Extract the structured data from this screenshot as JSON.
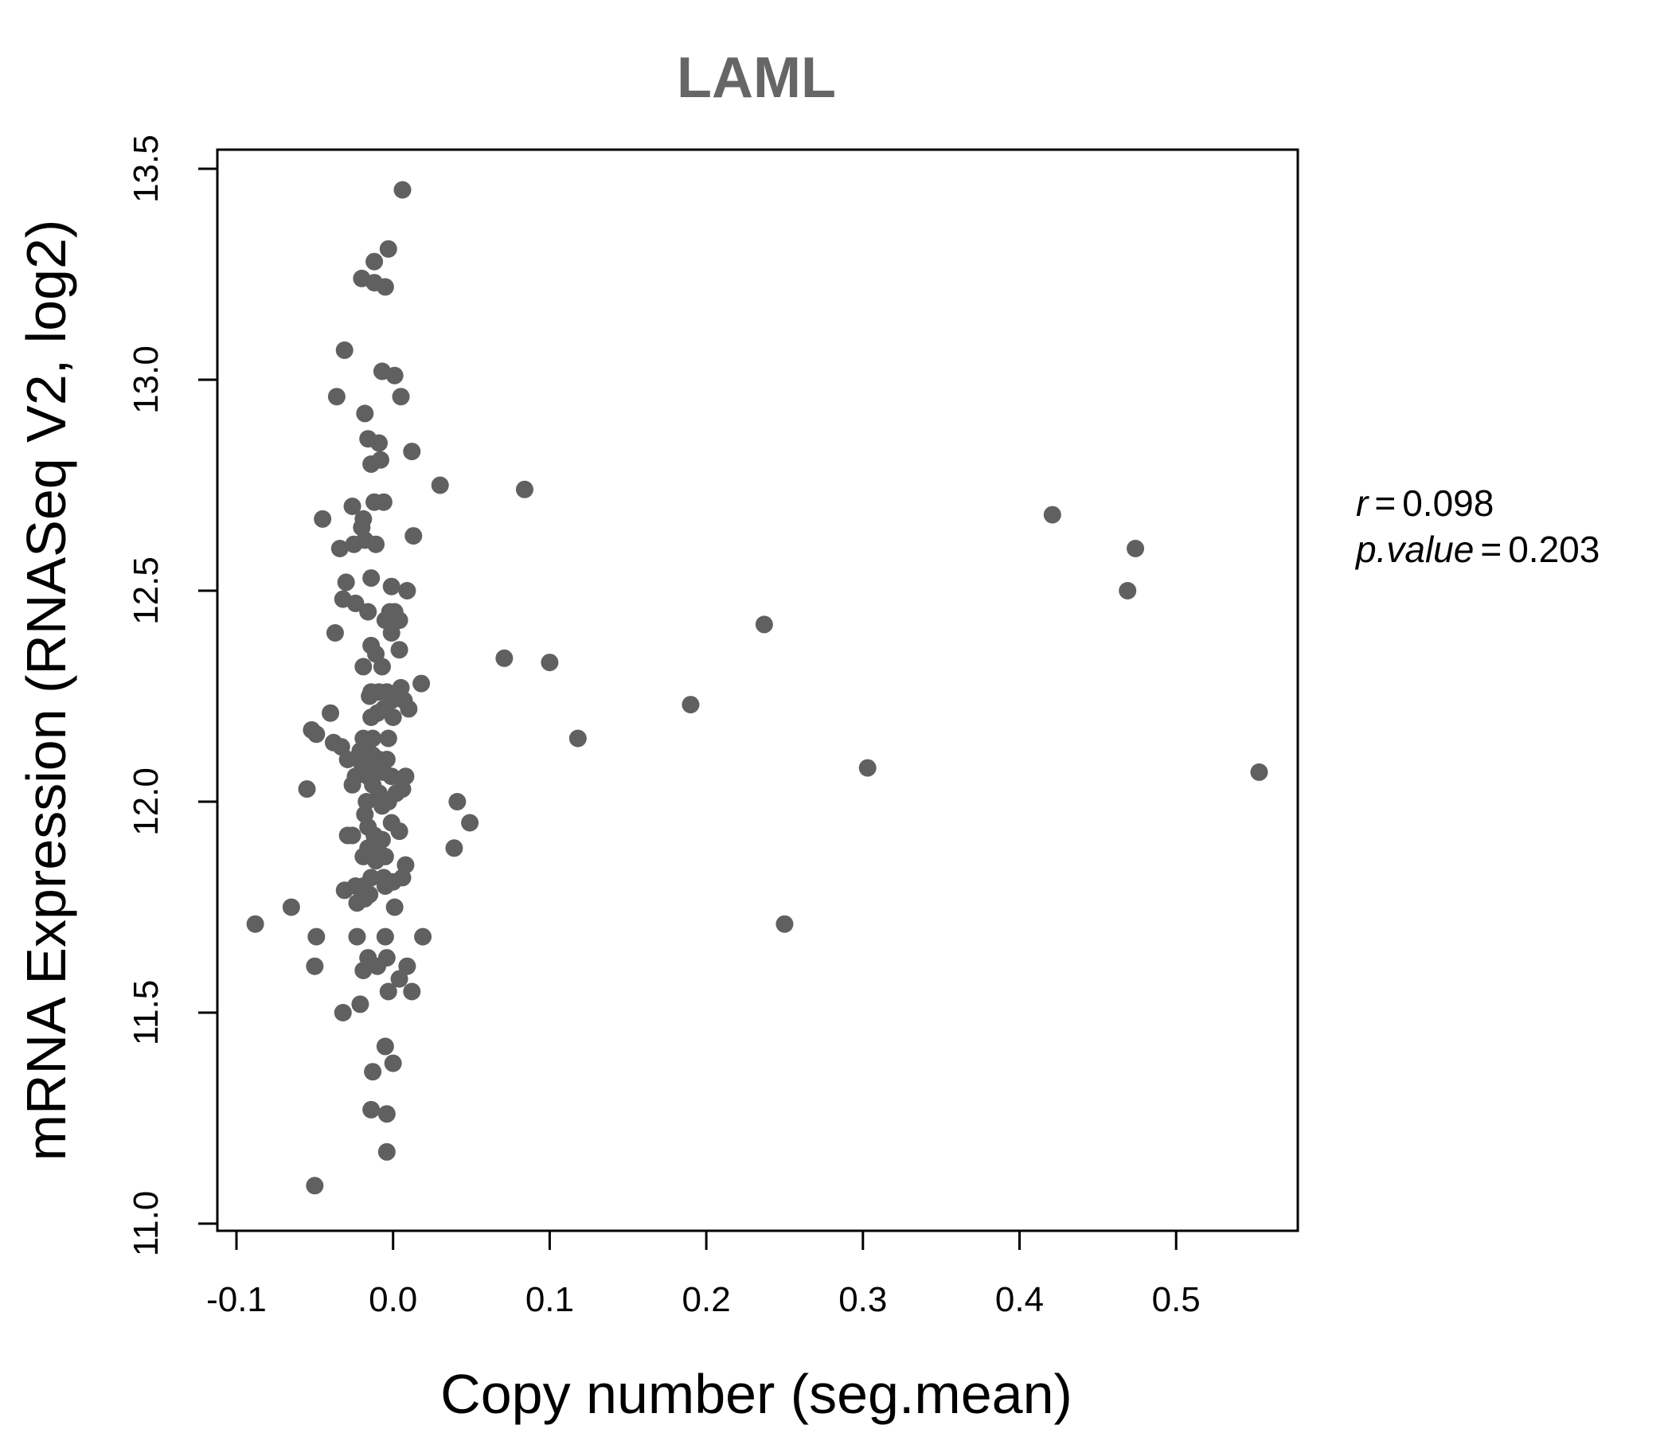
{
  "chart_data": {
    "type": "scatter",
    "title": "LAML",
    "xlabel": "Copy number (seg.mean)",
    "ylabel": "mRNA Expression (RNASeq V2, log2)",
    "xlim": [
      -0.11,
      0.58
    ],
    "ylim": [
      11.0,
      13.5
    ],
    "x_ticks": [
      -0.1,
      0.0,
      0.1,
      0.2,
      0.3,
      0.4,
      0.5
    ],
    "x_tick_labels": [
      "-0.1",
      "0.0",
      "0.1",
      "0.2",
      "0.3",
      "0.4",
      "0.5"
    ],
    "y_ticks": [
      11.0,
      11.5,
      12.0,
      12.5,
      13.0,
      13.5
    ],
    "y_tick_labels": [
      "11.0",
      "11.5",
      "12.0",
      "12.5",
      "13.0",
      "13.5"
    ],
    "grid": false,
    "point_color": "#606060",
    "stats": {
      "r_label": "r",
      "r_value": "0.098",
      "p_label": "p.value",
      "p_value": "0.203"
    },
    "points": [
      [
        0.006,
        13.45
      ],
      [
        -0.003,
        13.31
      ],
      [
        -0.012,
        13.28
      ],
      [
        -0.02,
        13.24
      ],
      [
        -0.012,
        13.23
      ],
      [
        -0.005,
        13.22
      ],
      [
        -0.031,
        13.07
      ],
      [
        -0.007,
        13.02
      ],
      [
        0.001,
        13.01
      ],
      [
        -0.036,
        12.96
      ],
      [
        0.005,
        12.96
      ],
      [
        -0.018,
        12.92
      ],
      [
        -0.016,
        12.86
      ],
      [
        -0.009,
        12.85
      ],
      [
        0.012,
        12.83
      ],
      [
        -0.008,
        12.81
      ],
      [
        -0.014,
        12.8
      ],
      [
        0.03,
        12.75
      ],
      [
        0.084,
        12.74
      ],
      [
        -0.026,
        12.7
      ],
      [
        -0.012,
        12.71
      ],
      [
        -0.006,
        12.71
      ],
      [
        0.421,
        12.68
      ],
      [
        -0.045,
        12.67
      ],
      [
        -0.019,
        12.67
      ],
      [
        -0.02,
        12.65
      ],
      [
        0.013,
        12.63
      ],
      [
        -0.018,
        12.62
      ],
      [
        -0.025,
        12.61
      ],
      [
        -0.011,
        12.61
      ],
      [
        -0.034,
        12.6
      ],
      [
        0.474,
        12.6
      ],
      [
        -0.03,
        12.52
      ],
      [
        -0.014,
        12.53
      ],
      [
        -0.001,
        12.51
      ],
      [
        0.009,
        12.5
      ],
      [
        0.469,
        12.5
      ],
      [
        -0.032,
        12.48
      ],
      [
        -0.024,
        12.47
      ],
      [
        -0.016,
        12.45
      ],
      [
        -0.002,
        12.45
      ],
      [
        0.001,
        12.45
      ],
      [
        -0.005,
        12.43
      ],
      [
        0.004,
        12.43
      ],
      [
        0.237,
        12.42
      ],
      [
        -0.037,
        12.4
      ],
      [
        -0.001,
        12.4
      ],
      [
        -0.014,
        12.37
      ],
      [
        -0.011,
        12.35
      ],
      [
        0.004,
        12.36
      ],
      [
        0.071,
        12.34
      ],
      [
        0.1,
        12.33
      ],
      [
        -0.019,
        12.32
      ],
      [
        -0.007,
        12.32
      ],
      [
        0.018,
        12.28
      ],
      [
        0.005,
        12.27
      ],
      [
        -0.014,
        12.26
      ],
      [
        -0.009,
        12.26
      ],
      [
        -0.004,
        12.26
      ],
      [
        0.002,
        12.25
      ],
      [
        -0.015,
        12.25
      ],
      [
        0.007,
        12.24
      ],
      [
        -0.001,
        12.24
      ],
      [
        0.19,
        12.23
      ],
      [
        0.01,
        12.22
      ],
      [
        -0.04,
        12.21
      ],
      [
        -0.006,
        12.22
      ],
      [
        -0.014,
        12.2
      ],
      [
        0.0,
        12.2
      ],
      [
        -0.01,
        12.21
      ],
      [
        -0.052,
        12.17
      ],
      [
        -0.049,
        12.16
      ],
      [
        0.118,
        12.15
      ],
      [
        -0.019,
        12.15
      ],
      [
        -0.013,
        12.15
      ],
      [
        -0.003,
        12.15
      ],
      [
        -0.038,
        12.14
      ],
      [
        -0.033,
        12.13
      ],
      [
        -0.021,
        12.12
      ],
      [
        -0.016,
        12.12
      ],
      [
        -0.013,
        12.11
      ],
      [
        -0.029,
        12.1
      ],
      [
        -0.009,
        12.1
      ],
      [
        -0.004,
        12.1
      ],
      [
        0.303,
        12.08
      ],
      [
        0.553,
        12.07
      ],
      [
        -0.02,
        12.09
      ],
      [
        -0.011,
        12.08
      ],
      [
        -0.006,
        12.07
      ],
      [
        -0.024,
        12.06
      ],
      [
        -0.016,
        12.06
      ],
      [
        -0.001,
        12.06
      ],
      [
        0.008,
        12.06
      ],
      [
        -0.026,
        12.04
      ],
      [
        -0.013,
        12.04
      ],
      [
        -0.055,
        12.03
      ],
      [
        0.006,
        12.03
      ],
      [
        0.002,
        12.02
      ],
      [
        -0.009,
        12.02
      ],
      [
        -0.017,
        12.0
      ],
      [
        0.041,
        12.0
      ],
      [
        -0.003,
        12.0
      ],
      [
        -0.007,
        11.99
      ],
      [
        -0.018,
        11.97
      ],
      [
        0.049,
        11.95
      ],
      [
        -0.001,
        11.95
      ],
      [
        -0.016,
        11.94
      ],
      [
        0.004,
        11.93
      ],
      [
        -0.029,
        11.92
      ],
      [
        -0.026,
        11.92
      ],
      [
        -0.012,
        11.92
      ],
      [
        -0.007,
        11.91
      ],
      [
        0.004,
        11.93
      ],
      [
        0.039,
        11.89
      ],
      [
        -0.016,
        11.89
      ],
      [
        -0.009,
        11.88
      ],
      [
        -0.005,
        11.87
      ],
      [
        -0.019,
        11.87
      ],
      [
        -0.011,
        11.86
      ],
      [
        0.008,
        11.85
      ],
      [
        -0.006,
        11.82
      ],
      [
        0.006,
        11.82
      ],
      [
        -0.014,
        11.82
      ],
      [
        0.0,
        11.81
      ],
      [
        -0.019,
        11.8
      ],
      [
        -0.005,
        11.8
      ],
      [
        -0.024,
        11.8
      ],
      [
        -0.031,
        11.79
      ],
      [
        -0.015,
        11.78
      ],
      [
        -0.023,
        11.76
      ],
      [
        -0.065,
        11.75
      ],
      [
        0.001,
        11.75
      ],
      [
        -0.018,
        11.77
      ],
      [
        -0.088,
        11.71
      ],
      [
        0.25,
        11.71
      ],
      [
        -0.049,
        11.68
      ],
      [
        -0.023,
        11.68
      ],
      [
        -0.005,
        11.68
      ],
      [
        0.019,
        11.68
      ],
      [
        -0.016,
        11.63
      ],
      [
        -0.004,
        11.63
      ],
      [
        0.009,
        11.61
      ],
      [
        -0.01,
        11.61
      ],
      [
        -0.05,
        11.61
      ],
      [
        -0.019,
        11.6
      ],
      [
        0.004,
        11.58
      ],
      [
        -0.003,
        11.55
      ],
      [
        0.012,
        11.55
      ],
      [
        -0.021,
        11.52
      ],
      [
        -0.032,
        11.5
      ],
      [
        -0.005,
        11.42
      ],
      [
        0.0,
        11.38
      ],
      [
        -0.013,
        11.36
      ],
      [
        -0.014,
        11.27
      ],
      [
        -0.004,
        11.26
      ],
      [
        -0.004,
        11.17
      ],
      [
        -0.05,
        11.09
      ]
    ]
  }
}
